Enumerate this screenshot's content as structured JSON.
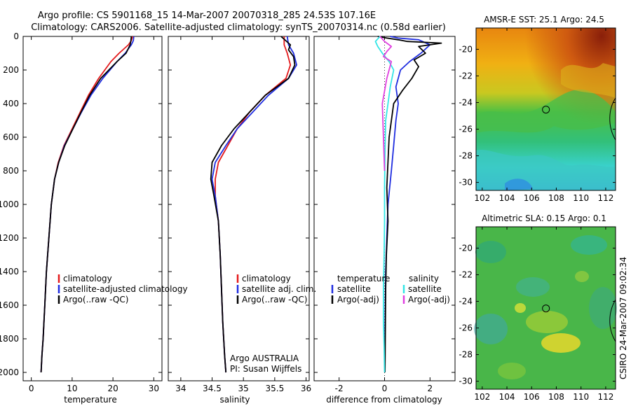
{
  "header": {
    "title_line1": "Argo profile: CS 5901168_15 14-Mar-2007 20070318_285 24.53S 107.16E",
    "title_line2": "Climatology: CARS2006. Satellite-adjusted climatology: synTS_20070314.nc (0.58d earlier)"
  },
  "side_note": "CSIRO 24-Mar-2007 09:02:34",
  "colors": {
    "red": "#e41a1c",
    "blue": "#1f2de0",
    "black": "#000000",
    "cyan": "#33e6e6",
    "magenta": "#e040e0"
  },
  "chart_data": [
    {
      "type": "line",
      "xlabel": "temperature",
      "ylabel": "",
      "xlim": [
        -2,
        32
      ],
      "ylim": [
        2050,
        0
      ],
      "y_reversed": true,
      "xticks": [
        0,
        10,
        20,
        30
      ],
      "yticks": [
        0,
        200,
        400,
        600,
        800,
        1000,
        1200,
        1400,
        1600,
        1800,
        2000
      ],
      "legend": {
        "position": "middle-right",
        "entries": [
          "climatology",
          "satellite-adjusted climatology",
          "Argo(..raw -QC)"
        ]
      },
      "series": [
        {
          "name": "climatology",
          "color": "red",
          "x": [
            24.8,
            24.5,
            23.8,
            21.5,
            19.5,
            16.5,
            14.0,
            12.0,
            10.0,
            8.0,
            6.6,
            5.7,
            4.9,
            4.3,
            3.7,
            3.3,
            2.9,
            2.6,
            2.4
          ],
          "y": [
            0,
            25,
            50,
            100,
            150,
            250,
            350,
            450,
            550,
            650,
            750,
            850,
            1000,
            1200,
            1400,
            1600,
            1800,
            1900,
            2000
          ]
        },
        {
          "name": "satellite-adjusted climatology",
          "color": "blue",
          "x": [
            25.1,
            25.0,
            24.5,
            23.0,
            21.0,
            17.5,
            14.6,
            12.3,
            10.2,
            8.1,
            6.7,
            5.7,
            4.9,
            4.3,
            3.7,
            3.3,
            2.9,
            2.6,
            2.4
          ],
          "y": [
            0,
            25,
            50,
            100,
            150,
            250,
            350,
            450,
            550,
            650,
            750,
            850,
            1000,
            1200,
            1400,
            1600,
            1800,
            1900,
            2000
          ]
        },
        {
          "name": "Argo(..raw -QC)",
          "color": "black",
          "x": [
            24.5,
            24.4,
            24.2,
            23.2,
            21.0,
            17.0,
            14.3,
            12.2,
            10.2,
            8.2,
            6.7,
            5.7,
            4.9,
            4.3,
            3.7,
            3.3,
            2.9,
            2.6,
            2.4
          ],
          "y": [
            0,
            25,
            50,
            100,
            150,
            250,
            350,
            450,
            550,
            650,
            750,
            850,
            1000,
            1200,
            1400,
            1600,
            1800,
            1900,
            2000
          ]
        }
      ]
    },
    {
      "type": "line",
      "xlabel": "salinity",
      "ylabel": "",
      "xlim": [
        33.8,
        36.05
      ],
      "ylim": [
        2050,
        0
      ],
      "y_reversed": true,
      "xticks": [
        34,
        34.5,
        35,
        35.5,
        36
      ],
      "yticks": [],
      "legend": {
        "position": "middle-right",
        "entries": [
          "climatology",
          "satellite adj. clim.",
          "Argo(..raw -QC)"
        ]
      },
      "annotation": [
        "Argo AUSTRALIA",
        "PI: Susan Wijffels"
      ],
      "series": [
        {
          "name": "climatology",
          "color": "red",
          "x": [
            35.65,
            35.65,
            35.7,
            35.75,
            35.68,
            35.35,
            35.1,
            34.9,
            34.75,
            34.6,
            34.55,
            34.55,
            34.6,
            34.63,
            34.65,
            34.67,
            34.7,
            34.72
          ],
          "y": [
            0,
            50,
            100,
            170,
            250,
            350,
            450,
            550,
            650,
            750,
            850,
            950,
            1100,
            1300,
            1500,
            1700,
            1900,
            2000
          ]
        },
        {
          "name": "satellite adj. clim.",
          "color": "blue",
          "x": [
            35.7,
            35.72,
            35.8,
            35.85,
            35.72,
            35.4,
            35.15,
            34.9,
            34.72,
            34.55,
            34.5,
            34.55,
            34.6,
            34.63,
            34.65,
            34.67,
            34.7,
            34.72
          ],
          "y": [
            0,
            50,
            100,
            170,
            250,
            350,
            450,
            550,
            650,
            750,
            850,
            950,
            1100,
            1300,
            1500,
            1700,
            1900,
            2000
          ]
        },
        {
          "name": "Argo(..raw -QC)",
          "color": "black",
          "x": [
            35.6,
            35.75,
            35.72,
            35.8,
            35.82,
            35.72,
            35.35,
            35.1,
            34.85,
            34.65,
            34.5,
            34.48,
            34.53,
            34.6,
            34.63,
            34.65,
            34.67,
            34.7,
            34.72
          ],
          "y": [
            0,
            50,
            80,
            120,
            170,
            250,
            350,
            450,
            550,
            650,
            750,
            850,
            950,
            1100,
            1300,
            1500,
            1700,
            1900,
            2000
          ]
        }
      ]
    },
    {
      "type": "line",
      "xlabel": "difference from climatology",
      "ylabel": "",
      "xlim": [
        -3.1,
        3.1
      ],
      "ylim": [
        2050,
        0
      ],
      "y_reversed": true,
      "xticks": [
        -2,
        0,
        2
      ],
      "yticks": [],
      "zero_line": true,
      "legend": {
        "position": "middle",
        "group_titles": [
          "temperature",
          "salinity"
        ],
        "entries": [
          "satellite",
          "Argo(-adj)",
          "satellite",
          "Argo(-adj)"
        ]
      },
      "series": [
        {
          "name": "temperature satellite",
          "color": "blue",
          "x": [
            0.25,
            0.6,
            1.5,
            2.0,
            1.6,
            1.1,
            0.7,
            0.5,
            0.6,
            0.5,
            0.4,
            0.3,
            0.15,
            0.1,
            0.05,
            0.03,
            0.02,
            0.02
          ],
          "y": [
            0,
            10,
            20,
            50,
            100,
            150,
            200,
            300,
            400,
            500,
            650,
            800,
            1000,
            1200,
            1400,
            1600,
            1800,
            2000
          ]
        },
        {
          "name": "temperature Argo(-adj)",
          "color": "black",
          "x": [
            -0.3,
            0.1,
            0.6,
            1.0,
            2.5,
            1.5,
            1.8,
            1.3,
            1.5,
            1.2,
            0.8,
            0.4,
            0.2,
            0.1,
            0.15,
            0.08,
            0.05,
            0.03,
            0.02
          ],
          "y": [
            0,
            10,
            20,
            30,
            40,
            60,
            100,
            140,
            180,
            250,
            320,
            400,
            600,
            900,
            1100,
            1300,
            1500,
            1800,
            2000
          ]
        },
        {
          "name": "salinity satellite",
          "color": "cyan",
          "x": [
            -0.2,
            -0.4,
            -0.3,
            -0.1,
            0.2,
            0.4,
            0.25,
            0.15,
            0.05,
            0.02,
            0.0,
            0.0,
            -0.02,
            -0.05,
            -0.05,
            -0.05,
            -0.02,
            0.0
          ],
          "y": [
            0,
            30,
            60,
            100,
            150,
            200,
            300,
            400,
            500,
            700,
            900,
            1100,
            1300,
            1500,
            1600,
            1700,
            1850,
            2000
          ]
        },
        {
          "name": "salinity Argo(-adj)",
          "color": "magenta",
          "x": [
            -0.2,
            0.0,
            0.3,
            0.1,
            -0.05,
            0.3,
            0.1,
            -0.1,
            -0.05,
            0.0
          ],
          "y": [
            0,
            30,
            60,
            90,
            120,
            150,
            250,
            400,
            600,
            800
          ]
        }
      ]
    },
    {
      "type": "heatmap",
      "title": "AMSR-E SST: 25.1 Argo: 24.5",
      "xticks": [
        102,
        104,
        106,
        108,
        110,
        112
      ],
      "yticks": [
        -20,
        -22,
        -24,
        -26,
        -28,
        -30
      ],
      "xlim": [
        101.5,
        112.8
      ],
      "ylim": [
        -30.6,
        -18.4
      ],
      "marker": {
        "lon": 107.16,
        "lat": -24.53
      }
    },
    {
      "type": "heatmap",
      "title": "Altimetric SLA: 0.15 Argo: 0.1",
      "xticks": [
        102,
        104,
        106,
        108,
        110,
        112
      ],
      "yticks": [
        -20,
        -22,
        -24,
        -26,
        -28,
        -30
      ],
      "xlim": [
        101.5,
        112.8
      ],
      "ylim": [
        -30.6,
        -18.4
      ],
      "marker": {
        "lon": 107.16,
        "lat": -24.53
      }
    }
  ]
}
